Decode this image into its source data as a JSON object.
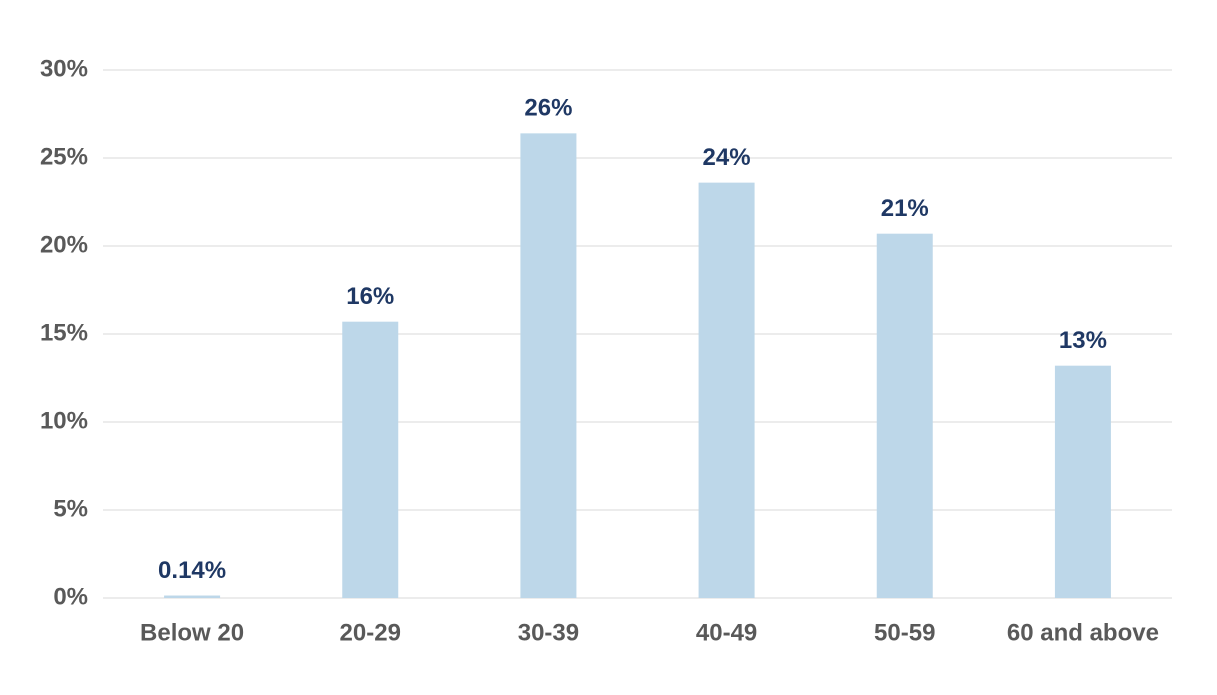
{
  "chart_data": {
    "type": "bar",
    "categories": [
      "Below 20",
      "20-29",
      "30-39",
      "40-49",
      "50-59",
      "60 and above"
    ],
    "values": [
      0.14,
      15.7,
      26.4,
      23.6,
      20.7,
      13.2
    ],
    "value_labels": [
      "0.14%",
      "16%",
      "26%",
      "24%",
      "21%",
      "13%"
    ],
    "color": "#bdd7e9",
    "ylim": [
      0,
      30
    ],
    "yticks": [
      {
        "value": 0,
        "label": "0%"
      },
      {
        "value": 5,
        "label": "5%"
      },
      {
        "value": 10,
        "label": "10%"
      },
      {
        "value": 15,
        "label": "15%"
      },
      {
        "value": 20,
        "label": "20%"
      },
      {
        "value": 25,
        "label": "25%"
      },
      {
        "value": 30,
        "label": "30%"
      }
    ],
    "grid": true
  }
}
